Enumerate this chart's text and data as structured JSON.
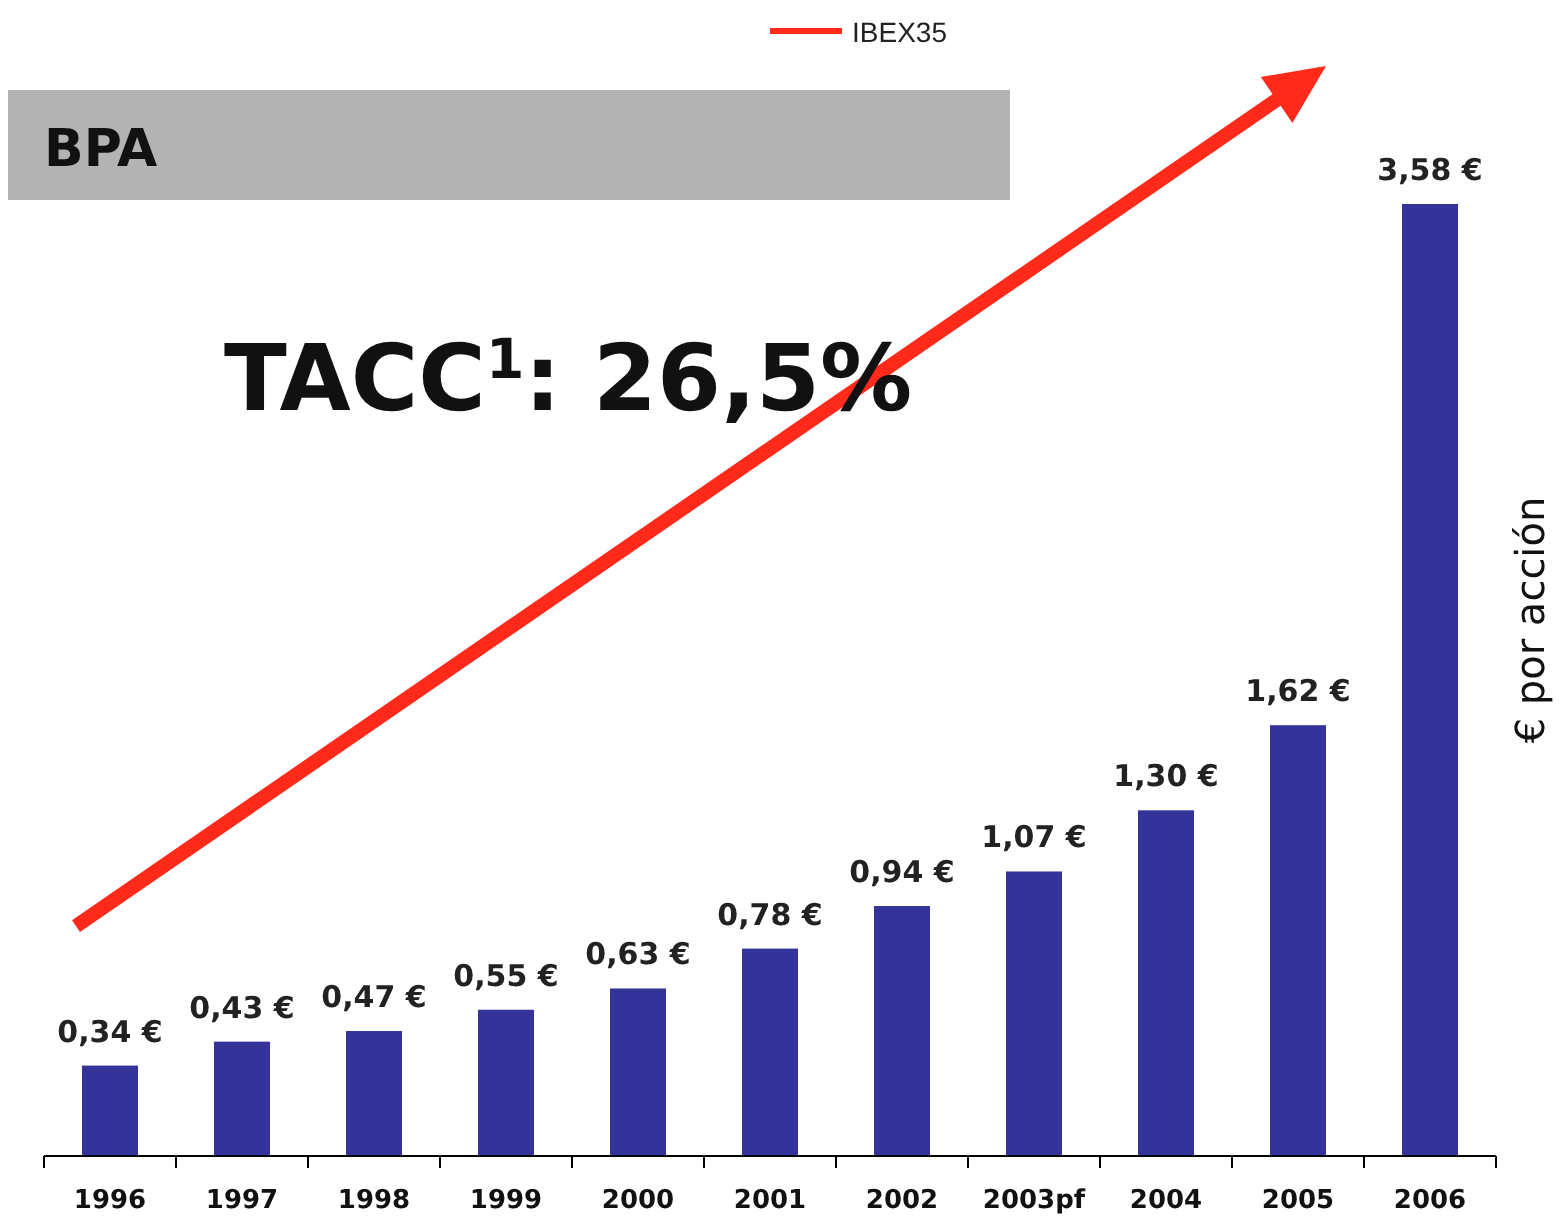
{
  "chart_data": {
    "type": "bar",
    "title": "BPA",
    "ylabel": "€ por acción",
    "categories": [
      "1996",
      "1997",
      "1998",
      "1999",
      "2000",
      "2001",
      "2002",
      "2003pf",
      "2004",
      "2005",
      "2006"
    ],
    "values": [
      0.34,
      0.43,
      0.47,
      0.55,
      0.63,
      0.78,
      0.94,
      1.07,
      1.3,
      1.62,
      3.58
    ],
    "value_labels": [
      "0,34 €",
      "0,43 €",
      "0,47 €",
      "0,55 €",
      "0,63 €",
      "0,78 €",
      "0,94 €",
      "1,07 €",
      "1,30 €",
      "1,62 €",
      "3,58 €"
    ],
    "color": "#333399",
    "annotations": [
      "TACC$^{1}$: 26,5%",
      "IBEX35"
    ]
  }
}
